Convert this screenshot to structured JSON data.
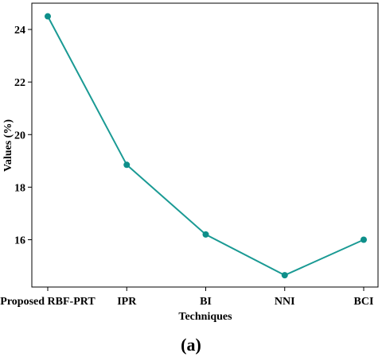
{
  "chart_data": {
    "type": "line",
    "categories": [
      "Proposed RBF-PRT",
      "IPR",
      "BI",
      "NNI",
      "BCI"
    ],
    "values": [
      24.5,
      18.85,
      16.2,
      14.65,
      16.0
    ],
    "xlabel": "Techniques",
    "ylabel": "Values (%)",
    "ylim": [
      14.2,
      25.0
    ],
    "yticks": [
      16,
      18,
      20,
      22,
      24
    ],
    "grid": false,
    "line_color": "#1a9a94",
    "marker_color": "#0e8f8a"
  },
  "panel_label": "(a)"
}
